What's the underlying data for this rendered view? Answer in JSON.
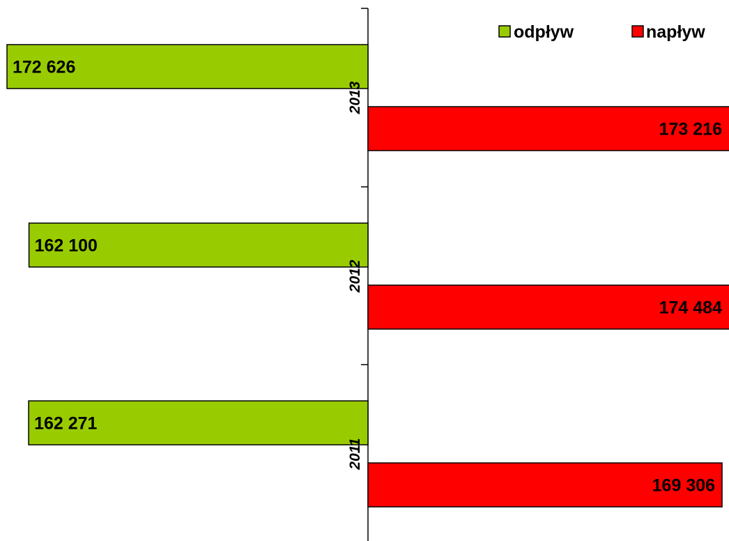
{
  "chart_data": {
    "type": "bar",
    "orientation": "horizontal-diverging",
    "categories": [
      "2013",
      "2012",
      "2011"
    ],
    "series": [
      {
        "name": "odpływ",
        "color": "#99CC00",
        "direction": "left",
        "values": [
          172626,
          162100,
          162271
        ],
        "labels": [
          "172 626",
          "162 100",
          "162 271"
        ]
      },
      {
        "name": "napływ",
        "color": "#FF0000",
        "direction": "right",
        "values": [
          173216,
          174484,
          169306
        ],
        "labels": [
          "173 216",
          "174 484",
          "169 306"
        ]
      }
    ],
    "legend_position": "top-right",
    "grid": false
  }
}
